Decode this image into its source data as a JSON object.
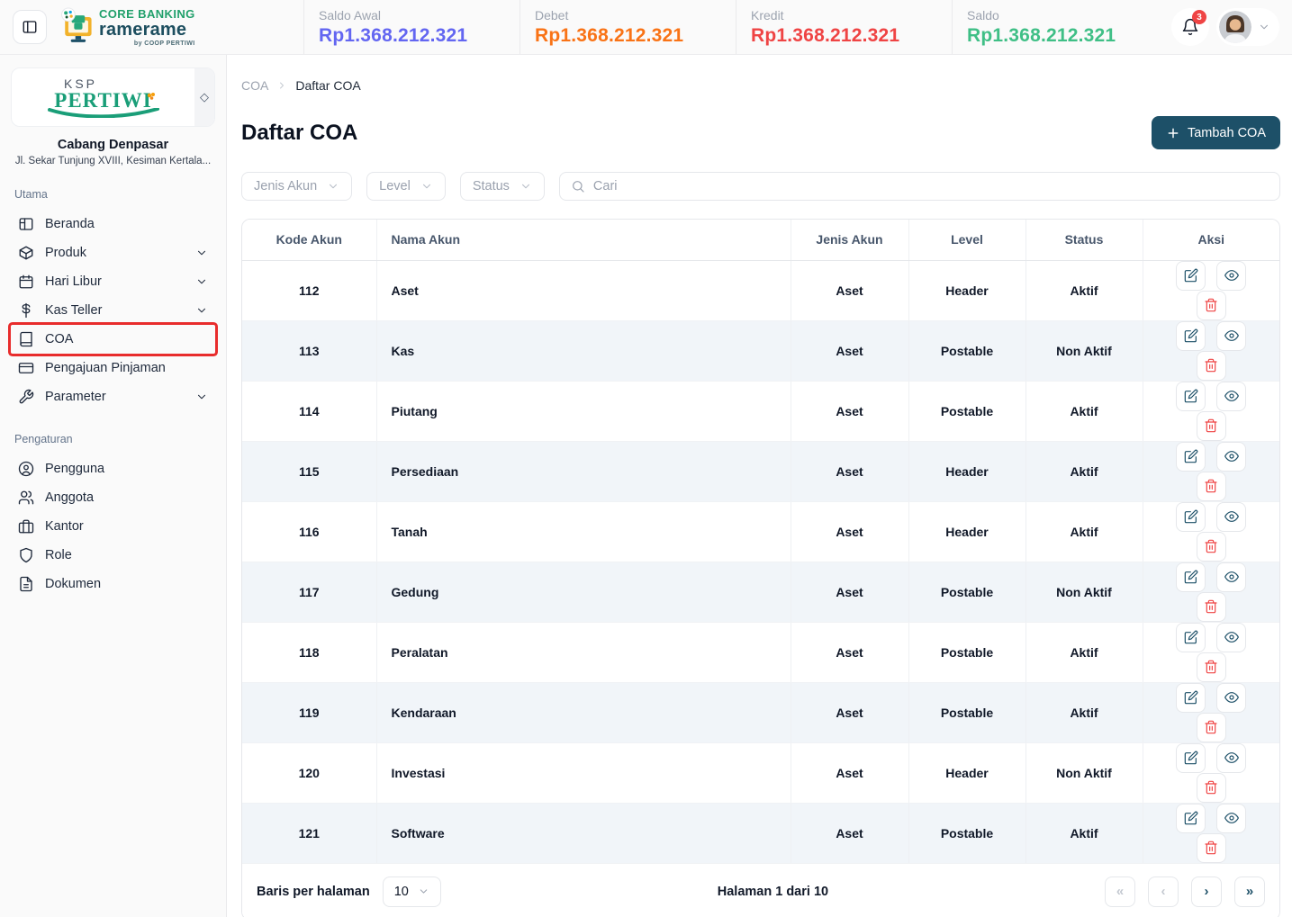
{
  "header": {
    "logo": {
      "title": "CORE BANKING",
      "subtitle": "ramerame",
      "tagline": "by COOP PERTIWI"
    },
    "stats": [
      {
        "label": "Saldo Awal",
        "value": "Rp1.368.212.321",
        "color": "#6366f1"
      },
      {
        "label": "Debet",
        "value": "Rp1.368.212.321",
        "color": "#f97316"
      },
      {
        "label": "Kredit",
        "value": "Rp1.368.212.321",
        "color": "#ef4444"
      },
      {
        "label": "Saldo",
        "value": "Rp1.368.212.321",
        "color": "#3fbf86"
      }
    ],
    "notifications": {
      "count": "3"
    }
  },
  "sidebar": {
    "brand": {
      "line1": "KSP",
      "line2": "PERTIWI"
    },
    "branch": {
      "name": "Cabang Denpasar",
      "address": "Jl. Sekar Tunjung XVIII, Kesiman Kertala..."
    },
    "sections": [
      {
        "label": "Utama",
        "items": [
          {
            "label": "Beranda",
            "icon": "layout-dashboard-icon",
            "expandable": false,
            "highlighted": false
          },
          {
            "label": "Produk",
            "icon": "box-icon",
            "expandable": true,
            "highlighted": false
          },
          {
            "label": "Hari Libur",
            "icon": "calendar-icon",
            "expandable": true,
            "highlighted": false
          },
          {
            "label": "Kas Teller",
            "icon": "dollar-icon",
            "expandable": true,
            "highlighted": false
          },
          {
            "label": "COA",
            "icon": "book-icon",
            "expandable": false,
            "highlighted": true
          },
          {
            "label": "Pengajuan Pinjaman",
            "icon": "credit-card-icon",
            "expandable": false,
            "highlighted": false
          },
          {
            "label": "Parameter",
            "icon": "wrench-icon",
            "expandable": true,
            "highlighted": false
          }
        ]
      },
      {
        "label": "Pengaturan",
        "items": [
          {
            "label": "Pengguna",
            "icon": "user-circle-icon",
            "expandable": false,
            "highlighted": false
          },
          {
            "label": "Anggota",
            "icon": "users-icon",
            "expandable": false,
            "highlighted": false
          },
          {
            "label": "Kantor",
            "icon": "briefcase-icon",
            "expandable": false,
            "highlighted": false
          },
          {
            "label": "Role",
            "icon": "shield-icon",
            "expandable": false,
            "highlighted": false
          },
          {
            "label": "Dokumen",
            "icon": "file-text-icon",
            "expandable": false,
            "highlighted": false
          }
        ]
      }
    ]
  },
  "main": {
    "breadcrumb": {
      "items": [
        "COA",
        "Daftar COA"
      ]
    },
    "title": "Daftar COA",
    "actions": {
      "add_label": "Tambah COA"
    },
    "filters": {
      "jenis_akun_label": "Jenis Akun",
      "level_label": "Level",
      "status_label": "Status",
      "search_placeholder": "Cari"
    },
    "table": {
      "columns": [
        "Kode Akun",
        "Nama Akun",
        "Jenis Akun",
        "Level",
        "Status",
        "Aksi"
      ],
      "row_actions": [
        "edit-icon",
        "eye-icon",
        "trash-icon"
      ],
      "rows": [
        {
          "kode": "112",
          "nama": "Aset",
          "jenis": "Aset",
          "level": "Header",
          "status": "Aktif"
        },
        {
          "kode": "113",
          "nama": "Kas",
          "jenis": "Aset",
          "level": "Postable",
          "status": "Non Aktif"
        },
        {
          "kode": "114",
          "nama": "Piutang",
          "jenis": "Aset",
          "level": "Postable",
          "status": "Aktif"
        },
        {
          "kode": "115",
          "nama": "Persediaan",
          "jenis": "Aset",
          "level": "Header",
          "status": "Aktif"
        },
        {
          "kode": "116",
          "nama": "Tanah",
          "jenis": "Aset",
          "level": "Header",
          "status": "Aktif"
        },
        {
          "kode": "117",
          "nama": "Gedung",
          "jenis": "Aset",
          "level": "Postable",
          "status": "Non Aktif"
        },
        {
          "kode": "118",
          "nama": "Peralatan",
          "jenis": "Aset",
          "level": "Postable",
          "status": "Aktif"
        },
        {
          "kode": "119",
          "nama": "Kendaraan",
          "jenis": "Aset",
          "level": "Postable",
          "status": "Aktif"
        },
        {
          "kode": "120",
          "nama": "Investasi",
          "jenis": "Aset",
          "level": "Header",
          "status": "Non Aktif"
        },
        {
          "kode": "121",
          "nama": "Software",
          "jenis": "Aset",
          "level": "Postable",
          "status": "Aktif"
        }
      ]
    },
    "pagination": {
      "rows_per_page_label": "Baris per halaman",
      "rows_per_page": "10",
      "page_info": "Halaman 1 dari 10",
      "buttons": [
        {
          "icon": "chevrons-left-icon",
          "enabled": false
        },
        {
          "icon": "chevron-left-icon",
          "enabled": false
        },
        {
          "icon": "chevron-right-icon",
          "enabled": true
        },
        {
          "icon": "chevrons-right-icon",
          "enabled": true
        }
      ]
    }
  },
  "colors": {
    "accent": "#1d5068",
    "danger": "#ef4444",
    "annotation": "#e82c2c"
  }
}
